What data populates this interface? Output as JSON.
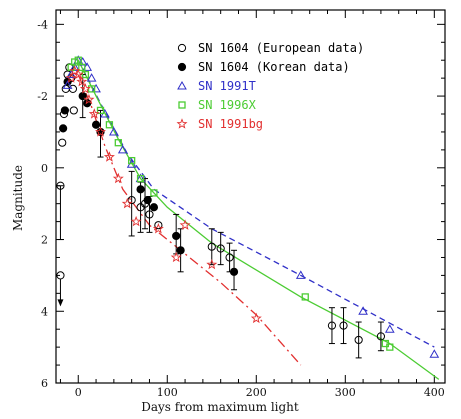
{
  "chart_data": {
    "type": "scatter",
    "xlabel": "Days from maximum light",
    "ylabel": "Magnitude",
    "xlim": [
      -25,
      412
    ],
    "ylim": [
      6,
      -4.4
    ],
    "y_inverted": true,
    "x_ticks": [
      0,
      100,
      200,
      300,
      400
    ],
    "y_ticks": [
      -4,
      -2,
      0,
      2,
      4,
      6
    ],
    "legend_position": "top-right",
    "series": [
      {
        "name": "SN 1604 (European data)",
        "marker": "open-circle",
        "color": "#000000",
        "points": [
          {
            "x": -20,
            "y": 0.5
          },
          {
            "x": -18,
            "y": -0.7
          },
          {
            "x": -16,
            "y": -1.5
          },
          {
            "x": -14,
            "y": -2.2
          },
          {
            "x": -12,
            "y": -2.6
          },
          {
            "x": -10,
            "y": -2.8
          },
          {
            "x": -8,
            "y": -2.5
          },
          {
            "x": -6,
            "y": -2.2
          },
          {
            "x": -5,
            "y": -1.6
          },
          {
            "x": 60,
            "y": 0.9
          },
          {
            "x": 70,
            "y": 1.1
          },
          {
            "x": 75,
            "y": 1.0
          },
          {
            "x": 80,
            "y": 1.3
          },
          {
            "x": 90,
            "y": 1.6
          },
          {
            "x": 150,
            "y": 2.2
          },
          {
            "x": 160,
            "y": 2.25
          },
          {
            "x": 170,
            "y": 2.5
          },
          {
            "x": 285,
            "y": 4.4
          },
          {
            "x": 298,
            "y": 4.4
          },
          {
            "x": 315,
            "y": 4.8
          },
          {
            "x": 340,
            "y": 4.7
          }
        ],
        "errorbars": [
          {
            "x": -20,
            "low": 0.5,
            "high": 2.0
          },
          {
            "x": 60,
            "low": 0.1,
            "high": 1.9
          },
          {
            "x": 70,
            "low": 0.4,
            "high": 1.8
          },
          {
            "x": 75,
            "low": 0.3,
            "high": 1.7
          },
          {
            "x": 80,
            "low": 0.8,
            "high": 1.8
          },
          {
            "x": 150,
            "low": 1.7,
            "high": 2.7
          },
          {
            "x": 160,
            "low": 1.8,
            "high": 2.7
          },
          {
            "x": 170,
            "low": 2.1,
            "high": 2.9
          },
          {
            "x": 285,
            "low": 3.9,
            "high": 4.9
          },
          {
            "x": 298,
            "low": 3.9,
            "high": 4.9
          },
          {
            "x": 315,
            "low": 4.3,
            "high": 5.3
          },
          {
            "x": 340,
            "low": 4.3,
            "high": 5.1
          }
        ],
        "upper_limit": {
          "x": -20,
          "y": 3.0
        }
      },
      {
        "name": "SN 1604 (Korean data)",
        "marker": "filled-circle",
        "color": "#000000",
        "points": [
          {
            "x": -17,
            "y": -1.1
          },
          {
            "x": -15,
            "y": -1.6
          },
          {
            "x": -12,
            "y": -2.4
          },
          {
            "x": 5,
            "y": -2.0
          },
          {
            "x": 10,
            "y": -1.8
          },
          {
            "x": 20,
            "y": -1.2
          },
          {
            "x": 25,
            "y": -1.0
          },
          {
            "x": 70,
            "y": 0.6
          },
          {
            "x": 78,
            "y": 0.9
          },
          {
            "x": 85,
            "y": 1.1
          },
          {
            "x": 110,
            "y": 1.9
          },
          {
            "x": 115,
            "y": 2.3
          },
          {
            "x": 175,
            "y": 2.9
          }
        ],
        "errorbars": [
          {
            "x": 5,
            "low": -2.6,
            "high": -1.4
          },
          {
            "x": 25,
            "low": -1.6,
            "high": -0.3
          },
          {
            "x": 110,
            "low": 1.3,
            "high": 2.4
          },
          {
            "x": 115,
            "low": 1.7,
            "high": 2.9
          },
          {
            "x": 175,
            "low": 2.3,
            "high": 3.4
          }
        ]
      },
      {
        "name": "SN 1991T",
        "marker": "open-triangle",
        "color": "#3030c8",
        "points": [
          {
            "x": -12,
            "y": -2.3
          },
          {
            "x": -8,
            "y": -2.6
          },
          {
            "x": -4,
            "y": -2.8
          },
          {
            "x": 0,
            "y": -3.0
          },
          {
            "x": 5,
            "y": -2.95
          },
          {
            "x": 10,
            "y": -2.8
          },
          {
            "x": 15,
            "y": -2.5
          },
          {
            "x": 20,
            "y": -2.2
          },
          {
            "x": 30,
            "y": -1.5
          },
          {
            "x": 40,
            "y": -1.0
          },
          {
            "x": 50,
            "y": -0.5
          },
          {
            "x": 60,
            "y": -0.1
          },
          {
            "x": 70,
            "y": 0.3
          },
          {
            "x": 250,
            "y": 3.0
          },
          {
            "x": 320,
            "y": 4.0
          },
          {
            "x": 350,
            "y": 4.5
          },
          {
            "x": 400,
            "y": 5.2
          }
        ],
        "fit": [
          [
            0,
            -3.0
          ],
          [
            25,
            -1.8
          ],
          [
            55,
            -0.4
          ],
          [
            85,
            0.6
          ],
          [
            150,
            1.7
          ],
          [
            250,
            3.0
          ],
          [
            340,
            4.2
          ],
          [
            400,
            5.0
          ]
        ]
      },
      {
        "name": "SN 1996X",
        "marker": "open-square",
        "color": "#4ccc33",
        "points": [
          {
            "x": -8,
            "y": -2.8
          },
          {
            "x": -4,
            "y": -2.95
          },
          {
            "x": 0,
            "y": -3.0
          },
          {
            "x": 4,
            "y": -2.8
          },
          {
            "x": 8,
            "y": -2.6
          },
          {
            "x": 15,
            "y": -2.2
          },
          {
            "x": 25,
            "y": -1.6
          },
          {
            "x": 35,
            "y": -1.2
          },
          {
            "x": 45,
            "y": -0.7
          },
          {
            "x": 60,
            "y": -0.2
          },
          {
            "x": 70,
            "y": 0.3
          },
          {
            "x": 85,
            "y": 0.7
          },
          {
            "x": 255,
            "y": 3.6
          },
          {
            "x": 345,
            "y": 4.9
          },
          {
            "x": 350,
            "y": 5.0
          }
        ],
        "fit": [
          [
            0,
            -3.0
          ],
          [
            20,
            -2.0
          ],
          [
            45,
            -0.8
          ],
          [
            70,
            0.3
          ],
          [
            100,
            1.1
          ],
          [
            150,
            2.1
          ],
          [
            250,
            3.6
          ],
          [
            350,
            4.9
          ],
          [
            405,
            5.9
          ]
        ]
      },
      {
        "name": "SN 1991bg",
        "marker": "star",
        "color": "#e23030",
        "points": [
          {
            "x": -8,
            "y": -2.5
          },
          {
            "x": -4,
            "y": -2.7
          },
          {
            "x": 0,
            "y": -2.6
          },
          {
            "x": 4,
            "y": -2.4
          },
          {
            "x": 8,
            "y": -2.2
          },
          {
            "x": 12,
            "y": -1.9
          },
          {
            "x": 18,
            "y": -1.5
          },
          {
            "x": 25,
            "y": -1.0
          },
          {
            "x": 35,
            "y": -0.3
          },
          {
            "x": 45,
            "y": 0.3
          },
          {
            "x": 55,
            "y": 1.0
          },
          {
            "x": 65,
            "y": 1.5
          },
          {
            "x": 90,
            "y": 1.7
          },
          {
            "x": 110,
            "y": 2.5
          },
          {
            "x": 120,
            "y": 1.6
          },
          {
            "x": 150,
            "y": 2.7
          },
          {
            "x": 200,
            "y": 4.2
          }
        ],
        "fit": [
          [
            0,
            -2.6
          ],
          [
            15,
            -1.7
          ],
          [
            30,
            -0.6
          ],
          [
            50,
            0.6
          ],
          [
            80,
            1.6
          ],
          [
            120,
            2.4
          ],
          [
            160,
            3.2
          ],
          [
            200,
            4.1
          ],
          [
            250,
            5.5
          ]
        ]
      }
    ]
  }
}
